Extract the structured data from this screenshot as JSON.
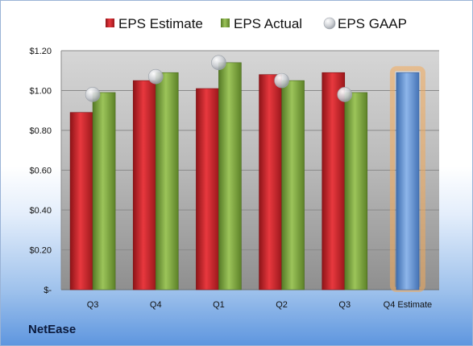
{
  "company": "NetEase",
  "chart_data": {
    "type": "bar",
    "categories": [
      "Q3",
      "Q4",
      "Q1",
      "Q2",
      "Q3",
      "Q4 Estimate"
    ],
    "series": [
      {
        "name": "EPS Estimate",
        "type": "bar",
        "color": "#c0262c",
        "values": [
          0.89,
          1.05,
          1.01,
          1.08,
          1.09,
          null
        ]
      },
      {
        "name": "EPS Actual",
        "type": "bar",
        "color": "#7aa03f",
        "values": [
          0.99,
          1.09,
          1.14,
          1.05,
          0.99,
          null
        ]
      },
      {
        "name": "EPS GAAP",
        "type": "scatter",
        "color": "#c8ccd2",
        "values": [
          0.98,
          1.07,
          1.14,
          1.05,
          0.98,
          null
        ]
      },
      {
        "name": "",
        "type": "bar",
        "color": "#6d9ad6",
        "highlight": "#f3a95a",
        "values": [
          null,
          null,
          null,
          null,
          null,
          1.09
        ]
      }
    ],
    "y_ticks": [
      {
        "value": 1.2,
        "label": "$1.20"
      },
      {
        "value": 1.0,
        "label": "$1.00"
      },
      {
        "value": 0.8,
        "label": "$0.80"
      },
      {
        "value": 0.6,
        "label": "$0.60"
      },
      {
        "value": 0.4,
        "label": "$0.40"
      },
      {
        "value": 0.2,
        "label": "$0.20"
      },
      {
        "value": 0.0,
        "label": "$-"
      }
    ],
    "ylim": [
      0,
      1.2
    ],
    "grid": true,
    "legend_position": "top",
    "title": "",
    "xlabel": "",
    "ylabel": ""
  }
}
